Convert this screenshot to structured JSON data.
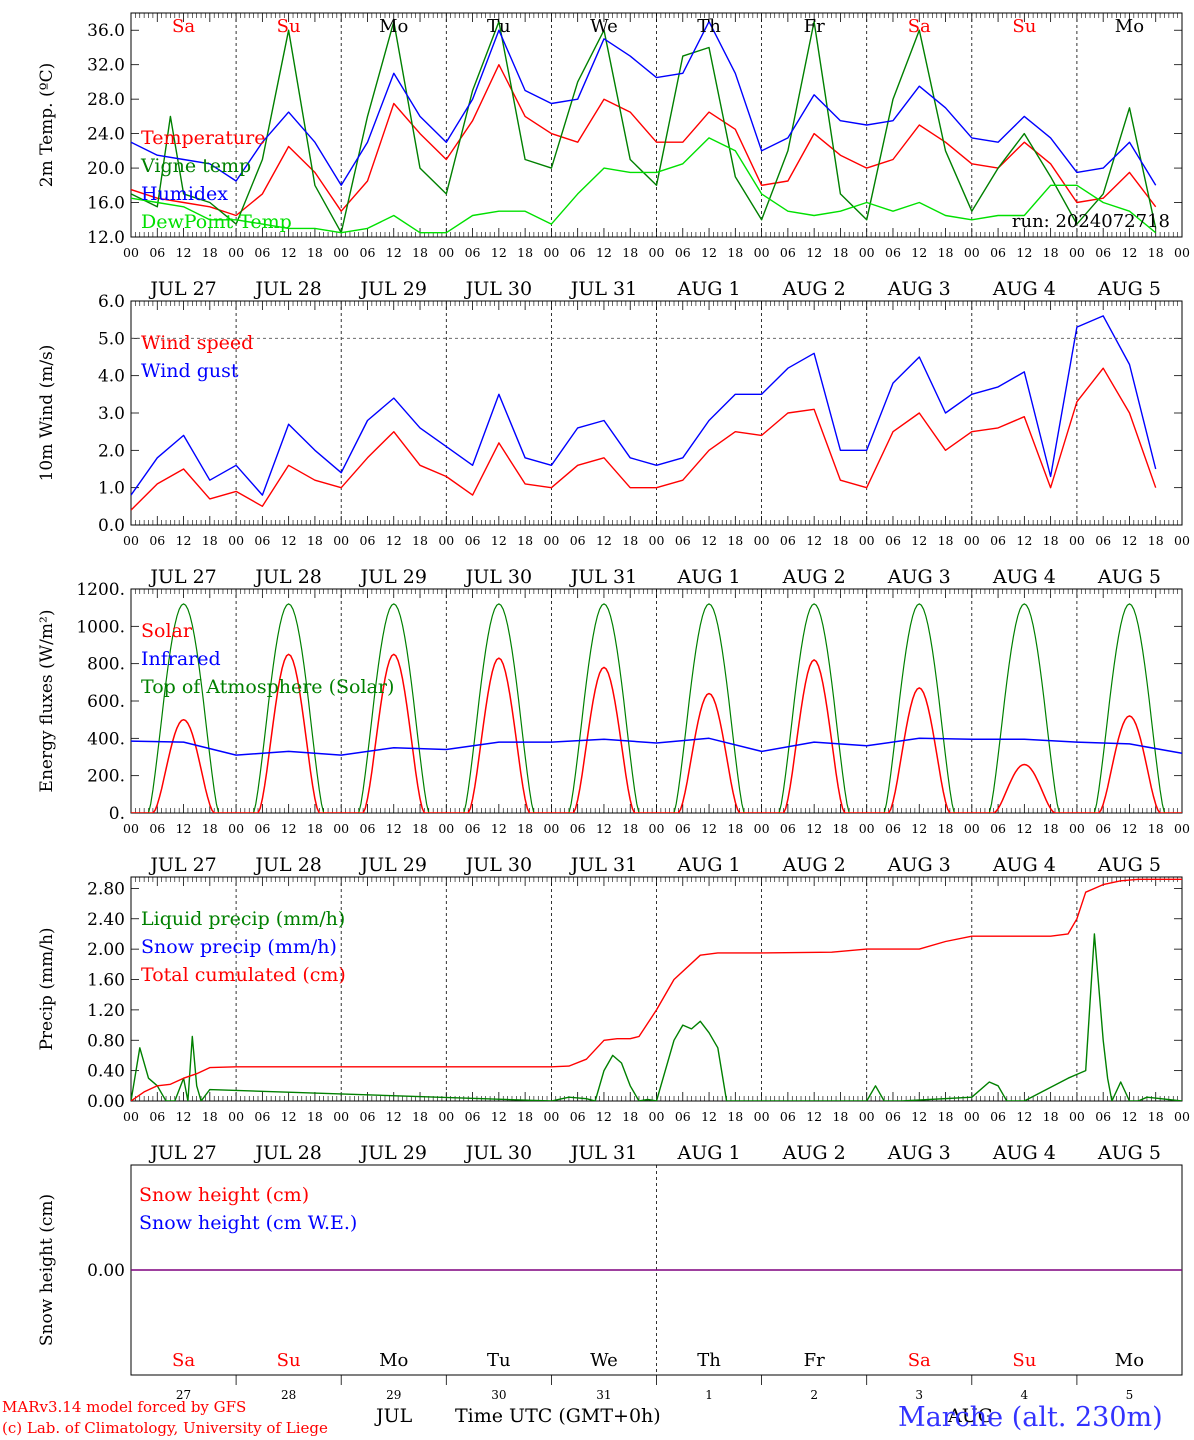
{
  "run_label": "run: 2024072718",
  "days": {
    "names": [
      "Sa",
      "Su",
      "Mo",
      "Tu",
      "We",
      "Th",
      "Fr",
      "Sa",
      "Su",
      "Mo"
    ],
    "weekend": [
      true,
      true,
      false,
      false,
      false,
      false,
      false,
      true,
      true,
      false
    ],
    "dates": [
      "JUL 27",
      "JUL 28",
      "JUL 29",
      "JUL 30",
      "JUL 31",
      "AUG  1",
      "AUG  2",
      "AUG  3",
      "AUG  4",
      "AUG  5"
    ],
    "day_numbers": [
      "27",
      "28",
      "29",
      "30",
      "31",
      "1",
      "2",
      "3",
      "4",
      "5"
    ],
    "hour_ticks": [
      "00",
      "06",
      "12",
      "18"
    ]
  },
  "colors": {
    "red": "#ff0000",
    "green": "#008000",
    "blue": "#0000ff",
    "lightgreen": "#00e000",
    "purple": "#7f007f"
  },
  "footer": {
    "model": "MARv3.14 model forced by GFS",
    "lab": "(c) Lab. of Climatology, University of Liege",
    "month1": "JUL",
    "month2": "AUG",
    "axis_title": "Time UTC (GMT+0h)",
    "station": "Marche (alt. 230m)"
  },
  "chart_data": [
    {
      "type": "line",
      "ylabel": "2m Temp. (ºC)",
      "ylim": [
        12,
        38
      ],
      "yticks": [
        12,
        16,
        20,
        24,
        28,
        32,
        36
      ],
      "ytick_labels": [
        "12.0",
        "16.0",
        "20.0",
        "24.0",
        "28.0",
        "32.0",
        "36.0"
      ],
      "x_unit": "hours since JUL 27 00 UTC",
      "series": [
        {
          "name": "Temperature",
          "color": "#ff0000",
          "x": [
            0,
            6,
            12,
            18,
            24,
            30,
            36,
            42,
            48,
            54,
            60,
            66,
            72,
            78,
            84,
            90,
            96,
            102,
            108,
            114,
            120,
            126,
            132,
            138,
            144,
            150,
            156,
            162,
            168,
            174,
            180,
            186,
            192,
            198,
            204,
            210,
            216,
            222,
            228,
            234
          ],
          "y": [
            17.5,
            16.5,
            16,
            15.5,
            14.5,
            17,
            22.5,
            19.5,
            15,
            18.5,
            27.5,
            24,
            21,
            25.5,
            32,
            26,
            24,
            23,
            28,
            26.5,
            23,
            23,
            26.5,
            24.5,
            18,
            18.5,
            24,
            21.5,
            20,
            21,
            25,
            23,
            20.5,
            20,
            23,
            20.5,
            16,
            16.5,
            19.5,
            15.5
          ]
        },
        {
          "name": "Vigne temp",
          "color": "#008000",
          "x": [
            0,
            6,
            9,
            12,
            18,
            24,
            30,
            36,
            42,
            48,
            54,
            60,
            66,
            72,
            78,
            84,
            90,
            96,
            102,
            108,
            114,
            120,
            126,
            132,
            138,
            144,
            150,
            156,
            162,
            168,
            174,
            180,
            186,
            192,
            198,
            204,
            210,
            216,
            222,
            228,
            234
          ],
          "y": [
            17,
            15.5,
            26,
            17,
            16,
            13.5,
            21,
            36,
            18,
            12.5,
            26,
            37,
            20,
            17,
            29,
            37,
            21,
            20,
            30,
            36,
            21,
            18,
            33,
            34,
            19,
            14,
            22,
            37,
            17,
            14,
            28,
            36,
            22,
            15,
            20,
            24,
            19,
            13.5,
            17,
            27,
            13
          ]
        },
        {
          "name": "Humidex",
          "color": "#0000ff",
          "x": [
            0,
            6,
            12,
            18,
            24,
            30,
            36,
            42,
            48,
            54,
            60,
            66,
            72,
            78,
            84,
            90,
            96,
            102,
            108,
            114,
            120,
            126,
            132,
            138,
            144,
            150,
            156,
            162,
            168,
            174,
            180,
            186,
            192,
            198,
            204,
            210,
            216,
            222,
            228,
            234
          ],
          "y": [
            23,
            21.5,
            21,
            20.5,
            18.5,
            23,
            26.5,
            23,
            18,
            23,
            31,
            26,
            23,
            28,
            36,
            29,
            27.5,
            28,
            35,
            33,
            30.5,
            31,
            37,
            31,
            22,
            23.5,
            28.5,
            25.5,
            25,
            25.5,
            29.5,
            27,
            23.5,
            23,
            26,
            23.5,
            19.5,
            20,
            23,
            18
          ]
        },
        {
          "name": "DewPoint Temp",
          "color": "#00e000",
          "x": [
            0,
            6,
            12,
            18,
            24,
            30,
            36,
            42,
            48,
            54,
            60,
            66,
            72,
            78,
            84,
            90,
            96,
            102,
            108,
            114,
            120,
            126,
            132,
            138,
            144,
            150,
            156,
            162,
            168,
            174,
            180,
            186,
            192,
            198,
            204,
            210,
            216,
            222,
            228,
            234
          ],
          "y": [
            16.5,
            16,
            15.5,
            14,
            14,
            13.5,
            13,
            13,
            12.5,
            13,
            14.5,
            12.5,
            12.5,
            14.5,
            15,
            15,
            13.5,
            17,
            20,
            19.5,
            19.5,
            20.5,
            23.5,
            22,
            17,
            15,
            14.5,
            15,
            16,
            15,
            16,
            14.5,
            14,
            14.5,
            14.5,
            18,
            18,
            16,
            15,
            12.5
          ]
        }
      ]
    },
    {
      "type": "line",
      "ylabel": "10m Wind (m/s)",
      "ylim": [
        0,
        6
      ],
      "yticks": [
        0,
        1,
        2,
        3,
        4,
        5,
        6
      ],
      "ytick_labels": [
        "0.0",
        "1.0",
        "2.0",
        "3.0",
        "4.0",
        "5.0",
        "6.0"
      ],
      "reference_line": 5,
      "series": [
        {
          "name": "Wind speed",
          "color": "#ff0000",
          "x": [
            0,
            6,
            12,
            18,
            24,
            30,
            36,
            42,
            48,
            54,
            60,
            66,
            72,
            78,
            84,
            90,
            96,
            102,
            108,
            114,
            120,
            126,
            132,
            138,
            144,
            150,
            156,
            162,
            168,
            174,
            180,
            186,
            192,
            198,
            204,
            210,
            216,
            222,
            228,
            234
          ],
          "y": [
            0.4,
            1.1,
            1.5,
            0.7,
            0.9,
            0.5,
            1.6,
            1.2,
            1.0,
            1.8,
            2.5,
            1.6,
            1.3,
            0.8,
            2.2,
            1.1,
            1.0,
            1.6,
            1.8,
            1.0,
            1.0,
            1.2,
            2.0,
            2.5,
            2.4,
            3.0,
            3.1,
            1.2,
            1.0,
            2.5,
            3.0,
            2.0,
            2.5,
            2.6,
            2.9,
            1.0,
            3.3,
            4.2,
            3.0,
            1.0
          ]
        },
        {
          "name": "Wind gust",
          "color": "#0000ff",
          "x": [
            0,
            6,
            12,
            18,
            24,
            30,
            36,
            42,
            48,
            54,
            60,
            66,
            72,
            78,
            84,
            90,
            96,
            102,
            108,
            114,
            120,
            126,
            132,
            138,
            144,
            150,
            156,
            162,
            168,
            174,
            180,
            186,
            192,
            198,
            204,
            210,
            216,
            222,
            228,
            234
          ],
          "y": [
            0.8,
            1.8,
            2.4,
            1.2,
            1.6,
            0.8,
            2.7,
            2.0,
            1.4,
            2.8,
            3.4,
            2.6,
            2.1,
            1.6,
            3.5,
            1.8,
            1.6,
            2.6,
            2.8,
            1.8,
            1.6,
            1.8,
            2.8,
            3.5,
            3.5,
            4.2,
            4.6,
            2.0,
            2.0,
            3.8,
            4.5,
            3.0,
            3.5,
            3.7,
            4.1,
            1.3,
            5.3,
            5.6,
            4.3,
            1.5
          ]
        }
      ]
    },
    {
      "type": "line",
      "ylabel": "Energy fluxes (W/m²)",
      "ylim": [
        0,
        1200
      ],
      "yticks": [
        0,
        200,
        400,
        600,
        800,
        1000,
        1200
      ],
      "ytick_labels": [
        "0.",
        "200.",
        "400.",
        "600.",
        "800.",
        "1000.",
        "1200."
      ],
      "toa_peak": 1120,
      "toa_sunrise_hour": 4,
      "toa_sunset_hour": 20,
      "series": [
        {
          "name": "Solar",
          "color": "#ff0000",
          "daily_peak": [
            500,
            850,
            850,
            830,
            780,
            640,
            820,
            670,
            260,
            520
          ]
        },
        {
          "name": "Infrared",
          "color": "#0000ff",
          "x": [
            0,
            12,
            24,
            36,
            48,
            60,
            72,
            84,
            96,
            108,
            120,
            132,
            144,
            156,
            168,
            180,
            192,
            204,
            216,
            228,
            240
          ],
          "y": [
            385,
            380,
            310,
            330,
            310,
            350,
            340,
            380,
            380,
            395,
            375,
            400,
            330,
            380,
            360,
            400,
            395,
            395,
            380,
            370,
            320
          ]
        },
        {
          "name": "Top of Atmosphere (Solar)",
          "color": "#008000"
        }
      ]
    },
    {
      "type": "line",
      "ylabel": "Precip (mm/h)",
      "ylim": [
        0,
        2.95
      ],
      "yticks": [
        0,
        0.4,
        0.8,
        1.2,
        1.6,
        2.0,
        2.4,
        2.8
      ],
      "ytick_labels": [
        "0.00",
        "0.40",
        "0.80",
        "1.20",
        "1.60",
        "2.00",
        "2.40",
        "2.80"
      ],
      "series": [
        {
          "name": "Liquid precip (mm/h)",
          "color": "#008000",
          "x": [
            0,
            2,
            4,
            6,
            8,
            10,
            12,
            13,
            14,
            15,
            16,
            18,
            96,
            100,
            104,
            106,
            108,
            110,
            112,
            114,
            116,
            118,
            120,
            124,
            126,
            128,
            130,
            132,
            134,
            136,
            138,
            140,
            142,
            144,
            168,
            170,
            172,
            174,
            176,
            192,
            196,
            198,
            200,
            202,
            204,
            214,
            216,
            218,
            220,
            222,
            223,
            224,
            226,
            228,
            230,
            232,
            240
          ],
          "y": [
            0,
            0.7,
            0.3,
            0.2,
            0,
            0,
            0.3,
            0,
            0.85,
            0.2,
            0,
            0.15,
            0,
            0.05,
            0.03,
            0,
            0.4,
            0.6,
            0.5,
            0.2,
            0,
            0.02,
            0,
            0.8,
            1.0,
            0.95,
            1.05,
            0.9,
            0.7,
            0,
            0,
            0,
            0,
            0,
            0,
            0.2,
            0,
            0,
            0,
            0.05,
            0.25,
            0.2,
            0,
            0,
            0,
            0.3,
            0.35,
            0.4,
            2.2,
            0.8,
            0.3,
            0,
            0.25,
            0,
            0,
            0.05,
            0
          ]
        },
        {
          "name": "Snow precip (mm/h)",
          "color": "#0000ff"
        },
        {
          "name": "Total cumulated (cm)",
          "color": "#ff0000",
          "x": [
            0,
            3,
            6,
            9,
            12,
            15,
            18,
            24,
            96,
            100,
            104,
            108,
            111,
            114,
            116,
            120,
            124,
            130,
            134,
            138,
            144,
            160,
            168,
            180,
            186,
            192,
            210,
            214,
            216,
            218,
            222,
            226,
            230,
            240
          ],
          "y": [
            0,
            0.12,
            0.2,
            0.22,
            0.3,
            0.36,
            0.44,
            0.45,
            0.45,
            0.46,
            0.55,
            0.8,
            0.82,
            0.82,
            0.85,
            1.2,
            1.6,
            1.92,
            1.95,
            1.95,
            1.95,
            1.96,
            2.0,
            2.0,
            2.1,
            2.17,
            2.17,
            2.2,
            2.4,
            2.75,
            2.85,
            2.9,
            2.92,
            2.92
          ]
        }
      ]
    },
    {
      "type": "line",
      "ylabel": "Snow height (cm)",
      "ylim": [
        -1,
        1
      ],
      "yticks": [
        0
      ],
      "ytick_labels": [
        "0.00"
      ],
      "series": [
        {
          "name": "Snow height (cm)",
          "color": "#ff0000",
          "x": [
            0,
            240
          ],
          "y": [
            0,
            0
          ]
        },
        {
          "name": "Snow height (cm W.E.)",
          "color": "#0000ff",
          "x": [
            0,
            240
          ],
          "y": [
            0,
            0
          ]
        }
      ]
    }
  ]
}
